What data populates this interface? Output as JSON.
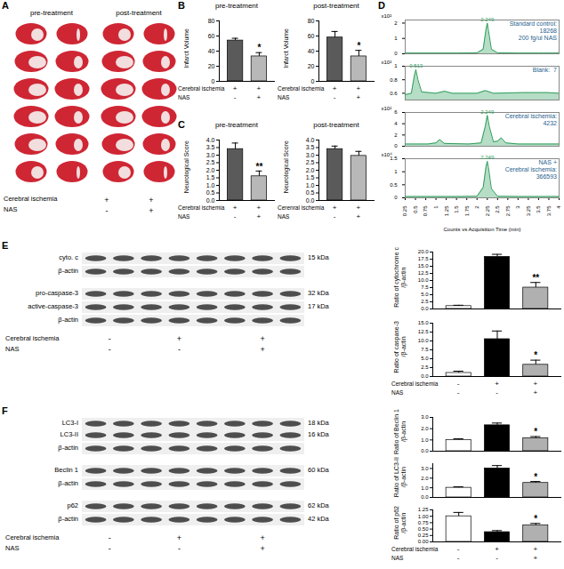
{
  "panel_letters": [
    "A",
    "B",
    "C",
    "D",
    "E",
    "F"
  ],
  "slices": {
    "groups": [
      "pre-treatment",
      "post-treatment"
    ],
    "conditions": [
      {
        "name": "Cerebral ischemia",
        "signs": [
          "+",
          "+"
        ]
      },
      {
        "name": "NAS",
        "signs": [
          "-",
          "+"
        ]
      }
    ]
  },
  "blots": [
    {
      "groups": [
        [
          {
            "names": [
              "cyto. c"
            ],
            "kda": [
              "15 kDa"
            ]
          },
          {
            "names": [
              "β-actin"
            ],
            "kda": []
          }
        ],
        [
          {
            "names": [
              "pro-caspase-3"
            ],
            "kda": [
              "32 kDa"
            ]
          },
          {
            "names": [
              "active-caspase-3"
            ],
            "kda": [
              "17 kDa"
            ]
          },
          {
            "names": [
              "β-actin"
            ],
            "kda": []
          }
        ]
      ],
      "conditions": [
        {
          "name": "Cerebral ischemia",
          "signs": [
            "-",
            "+",
            "+"
          ]
        },
        {
          "name": "NAS",
          "signs": [
            "-",
            "-",
            "+"
          ]
        }
      ]
    },
    {
      "groups": [
        [
          {
            "names": [
              "LC3-I",
              "LC3-II"
            ],
            "kda": [
              "18 kDa",
              "16 kDa"
            ]
          },
          {
            "names": [
              "β-actin"
            ],
            "kda": []
          }
        ],
        [
          {
            "names": [
              "Beclin 1"
            ],
            "kda": [
              "60 kDa"
            ]
          },
          {
            "names": [
              "β-actin"
            ],
            "kda": []
          }
        ],
        [
          {
            "names": [
              "p62"
            ],
            "kda": [
              "62 kDa"
            ]
          },
          {
            "names": [
              "β-actin"
            ],
            "kda": [
              "42 kDa"
            ]
          }
        ]
      ],
      "conditions": [
        {
          "name": "Cerebral ischemia",
          "signs": [
            "-",
            "+",
            "+"
          ]
        },
        {
          "name": "NAS",
          "signs": [
            "-",
            "-",
            "+"
          ]
        }
      ]
    }
  ],
  "chart_data": [
    {
      "type": "bar",
      "title": "pre-treatment",
      "ylabel": "Infarct Volume",
      "categories": [
        null,
        null
      ],
      "values": [
        54,
        33
      ],
      "errors": [
        3,
        5
      ],
      "annotations": [
        null,
        "*"
      ],
      "colors": [
        "#5a5a5a",
        "#b8b8b8"
      ],
      "ylim": [
        0,
        80
      ],
      "yticks": [
        0,
        20,
        40,
        60,
        80
      ],
      "tick_labels": "y",
      "conditions": [
        {
          "name": "Cerebral ischemia",
          "signs": [
            "+",
            "+"
          ]
        },
        {
          "name": "NAS",
          "signs": [
            "-",
            "+"
          ]
        }
      ]
    },
    {
      "type": "bar",
      "title": "post-treatment",
      "ylabel": "Infarct Volume",
      "categories": [
        null,
        null
      ],
      "values": [
        58,
        33
      ],
      "errors": [
        8,
        8
      ],
      "annotations": [
        null,
        "*"
      ],
      "colors": [
        "#5a5a5a",
        "#b8b8b8"
      ],
      "ylim": [
        0,
        80
      ],
      "yticks": [
        0,
        20,
        40,
        60,
        80
      ],
      "tick_labels": "y",
      "conditions": [
        {
          "name": "Cerebral ischemia",
          "signs": [
            "+",
            "+"
          ]
        },
        {
          "name": "NAS",
          "signs": [
            "-",
            "+"
          ]
        }
      ]
    },
    {
      "type": "bar",
      "title": "pre-treatment",
      "ylabel": "Neurological Score",
      "categories": [
        null,
        null
      ],
      "values": [
        3.4,
        1.6
      ],
      "errors": [
        0.4,
        0.35
      ],
      "annotations": [
        null,
        "**"
      ],
      "colors": [
        "#5a5a5a",
        "#b8b8b8"
      ],
      "ylim": [
        0,
        4
      ],
      "yticks": [
        {
          "value": 0,
          "label": "0.0"
        },
        0.5,
        {
          "value": 1,
          "label": "1.0"
        },
        1.5,
        {
          "value": 2,
          "label": "2.0"
        },
        2.5,
        {
          "value": 3,
          "label": "3.0"
        },
        3.5,
        {
          "value": 4,
          "label": "4.0"
        }
      ],
      "tick_labels": "y",
      "conditions": [
        {
          "name": "Cerebral ischemia",
          "signs": [
            "+",
            "+"
          ]
        },
        {
          "name": "NAS",
          "signs": [
            "-",
            "+"
          ]
        }
      ]
    },
    {
      "type": "bar",
      "title": "post-treatment",
      "ylabel": "Neurological Score",
      "categories": [
        null,
        null
      ],
      "values": [
        3.4,
        2.95
      ],
      "errors": [
        0.2,
        0.3
      ],
      "annotations": [
        null,
        null
      ],
      "colors": [
        "#5a5a5a",
        "#b8b8b8"
      ],
      "ylim": [
        0,
        4
      ],
      "yticks": [
        {
          "value": 0,
          "label": "0.0"
        },
        0.5,
        {
          "value": 1,
          "label": "1.0"
        },
        1.5,
        {
          "value": 2,
          "label": "2.0"
        },
        2.5,
        {
          "value": 3,
          "label": "3.0"
        },
        3.5,
        {
          "value": 4,
          "label": "4.0"
        }
      ],
      "tick_labels": "y",
      "conditions": [
        {
          "name": "Cerenral ischemia",
          "signs": [
            "+",
            "+"
          ]
        },
        {
          "name": "NAS",
          "signs": [
            "-",
            "+"
          ]
        }
      ]
    },
    {
      "type": "line",
      "title": "Standard control:\n18268\n200 fg/ul NAS",
      "ylabel": "x10²",
      "color": "#2e9e5b",
      "x": [
        0.25,
        0.5,
        1,
        1.5,
        2,
        2.15,
        2.22,
        2.25,
        2.28,
        2.35,
        2.5,
        3,
        3.5,
        4
      ],
      "values": [
        0.05,
        0.05,
        0.05,
        0.05,
        0.06,
        0.3,
        1.6,
        2.0,
        1.5,
        0.3,
        0.06,
        0.05,
        0.05,
        0.05
      ],
      "xlim": [
        0.25,
        4
      ],
      "xticks": [
        0.25,
        0.5,
        0.75,
        1,
        1.25,
        1.5,
        1.75,
        2,
        2.25,
        2.5,
        2.75,
        3,
        3.25,
        3.5,
        3.75,
        4
      ],
      "ylim": [
        0,
        2.2
      ],
      "yticks": [
        0,
        1,
        2
      ],
      "tick_labels": "y",
      "annotations": [
        {
          "x": 2.249,
          "y": 2.0,
          "text": "2.249"
        }
      ]
    },
    {
      "type": "line",
      "title": "Blank:  7",
      "ylabel": "x10²",
      "color": "#2e9e5b",
      "x": [
        0.25,
        0.4,
        0.47,
        0.51,
        0.56,
        0.65,
        1,
        1.21,
        1.4,
        2,
        2.2,
        2.4,
        3.11,
        3.71,
        4
      ],
      "values": [
        0.58,
        0.6,
        0.85,
        0.95,
        0.8,
        0.62,
        0.6,
        0.63,
        0.6,
        0.6,
        0.64,
        0.6,
        0.61,
        0.61,
        0.6
      ],
      "xlim": [
        0.25,
        4
      ],
      "xticks": [
        0.25,
        0.5,
        0.75,
        1,
        1.25,
        1.5,
        1.75,
        2,
        2.25,
        2.5,
        2.75,
        3,
        3.25,
        3.5,
        3.75,
        4
      ],
      "ylim": [
        0.5,
        1
      ],
      "yticks": [
        0.6,
        0.8,
        1
      ],
      "tick_labels": "y",
      "annotations": [
        {
          "x": 0.513,
          "y": 0.95,
          "text": "0.513"
        }
      ]
    },
    {
      "type": "line",
      "title": "Cerebral ischemia:\n4232",
      "ylabel": "x10²",
      "color": "#2e9e5b",
      "x": [
        0.25,
        0.8,
        1,
        1.09,
        1.2,
        1.8,
        2.1,
        2.2,
        2.25,
        2.3,
        2.4,
        2.5,
        2.59,
        2.7,
        3,
        4
      ],
      "values": [
        0.4,
        0.4,
        0.6,
        1.2,
        0.5,
        0.4,
        0.6,
        3.5,
        5.5,
        3.5,
        0.8,
        0.9,
        1.5,
        0.6,
        0.4,
        0.4
      ],
      "xlim": [
        0.25,
        4
      ],
      "xticks": [
        0.25,
        0.5,
        0.75,
        1,
        1.25,
        1.5,
        1.75,
        2,
        2.25,
        2.5,
        2.75,
        3,
        3.25,
        3.5,
        3.75,
        4
      ],
      "ylim": [
        0,
        6
      ],
      "yticks": [
        0,
        2,
        4,
        6
      ],
      "tick_labels": "y",
      "annotations": [
        {
          "x": 2.249,
          "y": 5.5,
          "text": "2.249"
        }
      ]
    },
    {
      "type": "line",
      "title": "NAS +\nCerebral ischemia:\n366593",
      "ylabel": "x10⁴",
      "color": "#2e9e5b",
      "x": [
        0.25,
        1,
        1.5,
        2,
        2.15,
        2.22,
        2.25,
        2.28,
        2.35,
        2.5,
        3,
        4
      ],
      "values": [
        0.05,
        0.05,
        0.05,
        0.06,
        0.4,
        1.2,
        1.4,
        1.15,
        0.35,
        0.06,
        0.05,
        0.05
      ],
      "xlim": [
        0.25,
        4
      ],
      "xticks": [
        0.25,
        0.5,
        0.75,
        1,
        1.25,
        1.5,
        1.75,
        2,
        2.25,
        2.5,
        2.75,
        3,
        3.25,
        3.5,
        3.75,
        4
      ],
      "ylim": [
        0,
        1.5
      ],
      "yticks": [
        0,
        0.5,
        1,
        1.5
      ],
      "tick_labels": true,
      "xlabel": "Counts vs Acquisition Time (min)",
      "annotations": [
        {
          "x": 2.249,
          "y": 1.4,
          "text": "2.249"
        }
      ]
    },
    {
      "type": "bar",
      "ylabel": "Ratio of cytochrome c\n/β-actin",
      "categories": [
        null,
        null,
        null
      ],
      "values": [
        1.0,
        18.3,
        7.5
      ],
      "errors": [
        0.3,
        0.9,
        1.8
      ],
      "annotations": [
        null,
        null,
        "**"
      ],
      "colors": [
        "#ffffff",
        "#000000",
        "#b0b0b0"
      ],
      "ylim": [
        0,
        20
      ],
      "yticks": [
        {
          "value": 0,
          "label": "0.0"
        },
        2.5,
        {
          "value": 5,
          "label": "5.0"
        },
        7.5,
        {
          "value": 10,
          "label": "10.0"
        },
        12.5,
        {
          "value": 15,
          "label": "15.0"
        },
        17.5,
        {
          "value": 20,
          "label": "20.0"
        }
      ],
      "tick_labels": "y"
    },
    {
      "type": "bar",
      "ylabel": "Ratio of caspase-3\n/β-actin",
      "categories": [
        null,
        null,
        null
      ],
      "values": [
        1.0,
        10.5,
        3.3
      ],
      "errors": [
        0.5,
        2.3,
        1.3
      ],
      "annotations": [
        null,
        null,
        "*"
      ],
      "colors": [
        "#ffffff",
        "#000000",
        "#b0b0b0"
      ],
      "ylim": [
        0,
        15
      ],
      "yticks": [
        {
          "value": 0,
          "label": "0.0"
        },
        2.5,
        {
          "value": 5,
          "label": "5.0"
        },
        7.5,
        {
          "value": 10,
          "label": "10.0"
        },
        12.5,
        {
          "value": 15,
          "label": "15.0"
        }
      ],
      "tick_labels": "y",
      "conditions": [
        {
          "name": "Cerebral ischemia",
          "signs": [
            "-",
            "+",
            "+"
          ]
        },
        {
          "name": "NAS",
          "signs": [
            "-",
            "-",
            "+"
          ]
        }
      ]
    },
    {
      "type": "bar",
      "ylabel": "Ratio of Beclin 1\n/β-actin",
      "categories": [
        null,
        null,
        null
      ],
      "values": [
        1.0,
        2.3,
        1.15
      ],
      "errors": [
        0.1,
        0.2,
        0.15
      ],
      "annotations": [
        null,
        null,
        "*"
      ],
      "colors": [
        "#ffffff",
        "#000000",
        "#b0b0b0"
      ],
      "ylim": [
        0,
        3
      ],
      "yticks": [
        {
          "value": 0,
          "label": "0.0"
        },
        {
          "value": 1,
          "label": "1.0"
        },
        {
          "value": 2,
          "label": "2.0"
        },
        {
          "value": 3,
          "label": "3.0"
        }
      ],
      "tick_labels": "y"
    },
    {
      "type": "bar",
      "ylabel": "Ratio of LC3-II\n/β-actin",
      "categories": [
        null,
        null,
        null
      ],
      "values": [
        1.0,
        3.0,
        1.5
      ],
      "errors": [
        0.1,
        0.3,
        0.15
      ],
      "annotations": [
        null,
        null,
        "*"
      ],
      "colors": [
        "#ffffff",
        "#000000",
        "#b0b0b0"
      ],
      "ylim": [
        0,
        3.5
      ],
      "yticks": [
        {
          "value": 0,
          "label": "0.0"
        },
        {
          "value": 1,
          "label": "1.0"
        },
        {
          "value": 2,
          "label": "2.0"
        },
        {
          "value": 3,
          "label": "3.0"
        }
      ],
      "tick_labels": "y"
    },
    {
      "type": "bar",
      "ylabel": "Ratio of p62\n/β-actin",
      "categories": [
        null,
        null,
        null
      ],
      "values": [
        1.0,
        0.38,
        0.65
      ],
      "errors": [
        0.15,
        0.06,
        0.07
      ],
      "annotations": [
        null,
        null,
        "*"
      ],
      "colors": [
        "#ffffff",
        "#000000",
        "#b0b0b0"
      ],
      "ylim": [
        0,
        1.25
      ],
      "yticks": [
        {
          "value": 0,
          "label": "0.00"
        },
        0.25,
        {
          "value": 0.5,
          "label": "0.50"
        },
        0.75,
        {
          "value": 1,
          "label": "1.00"
        },
        1.25
      ],
      "tick_labels": "y",
      "conditions": [
        {
          "name": "Cerebral ischemia",
          "signs": [
            "-",
            "+",
            "+"
          ]
        },
        {
          "name": "NAS",
          "signs": [
            "-",
            "-",
            "+"
          ]
        }
      ]
    }
  ]
}
